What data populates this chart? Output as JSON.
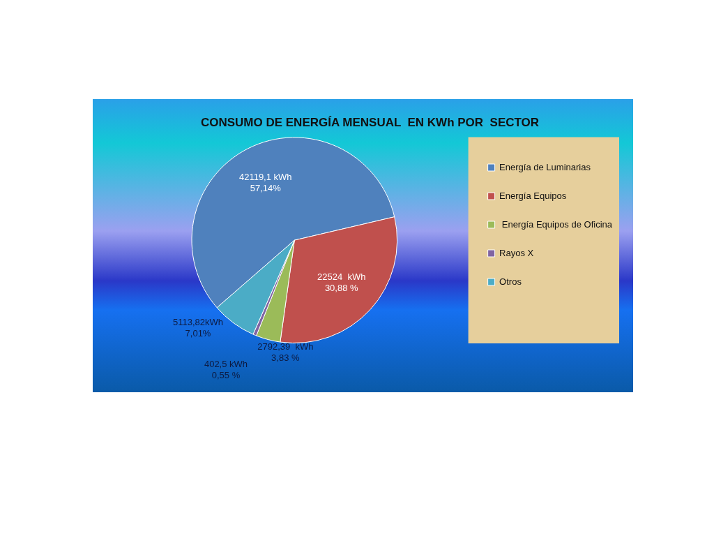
{
  "chart_data": {
    "type": "pie",
    "title": "CONSUMO DE ENERGÍA MENSUAL  EN KWh POR  SECTOR",
    "categories": [
      "Energía de Luminarias",
      "Energía Equipos",
      " Energía Equipos de Oficina",
      "Rayos X",
      "Otros"
    ],
    "values": [
      42119.1,
      22524,
      2792.39,
      402.5,
      5113.82
    ],
    "colors": [
      "#4f81bd",
      "#c0504d",
      "#9bbb59",
      "#8064a2",
      "#4bacc6"
    ],
    "value_labels": [
      "42119,1 kWh\n57,14%",
      "22524  kWh\n30,88 %",
      "2792,39  kWh\n3,83 %",
      "402,5 kWh\n0,55 %",
      "5113,82kWh\n7,01%"
    ],
    "legend": "right"
  }
}
